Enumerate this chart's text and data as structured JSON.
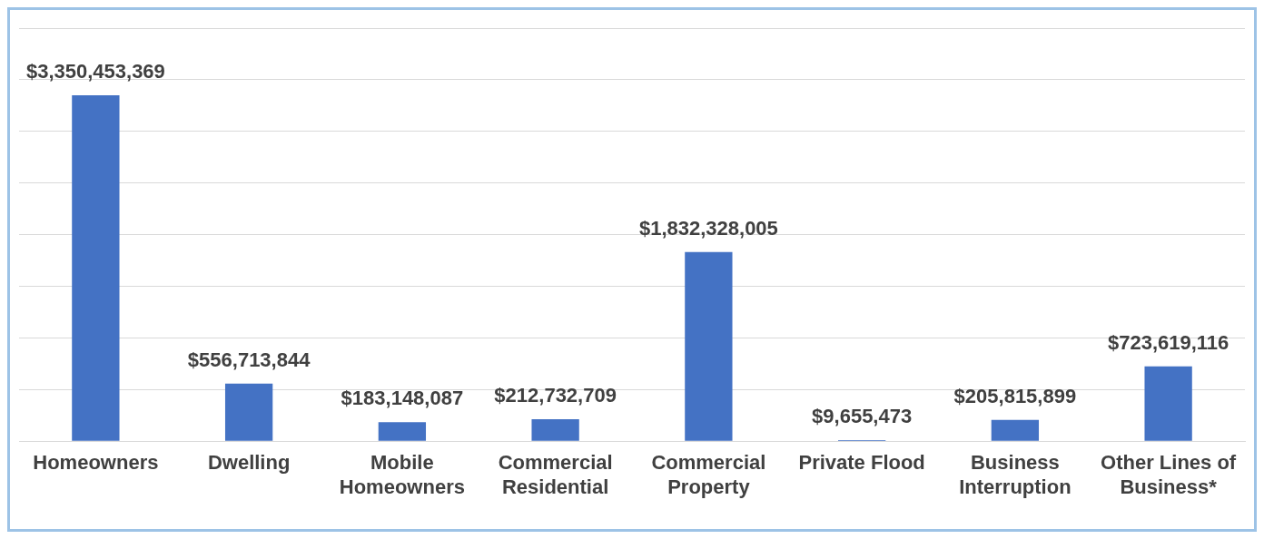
{
  "chart_data": {
    "type": "bar",
    "categories": [
      "Homeowners",
      "Dwelling",
      "Mobile Homeowners",
      "Commercial Residential",
      "Commercial Property",
      "Private Flood",
      "Business Interruption",
      "Other Lines of Business*"
    ],
    "values": [
      3350453369,
      556713844,
      183148087,
      212732709,
      1832328005,
      9655473,
      205815899,
      723619116
    ],
    "value_labels": [
      "$3,350,453,369",
      "$556,713,844",
      "$183,148,087",
      "$212,732,709",
      "$1,832,328,005",
      "$9,655,473",
      "$205,815,899",
      "$723,619,116"
    ],
    "color": "#4472c4",
    "ylim": [
      0,
      4000000000
    ],
    "yticks": [
      {
        "value": 0,
        "label": null
      },
      {
        "value": 500000000,
        "label": null
      },
      {
        "value": 1000000000,
        "label": null
      },
      {
        "value": 1500000000,
        "label": null
      },
      {
        "value": 2000000000,
        "label": null
      },
      {
        "value": 2500000000,
        "label": null
      },
      {
        "value": 3000000000,
        "label": null
      },
      {
        "value": 3500000000,
        "label": null
      },
      {
        "value": 4000000000,
        "label": null
      }
    ],
    "grid": "y",
    "tick_labels": "x",
    "legend": false
  }
}
